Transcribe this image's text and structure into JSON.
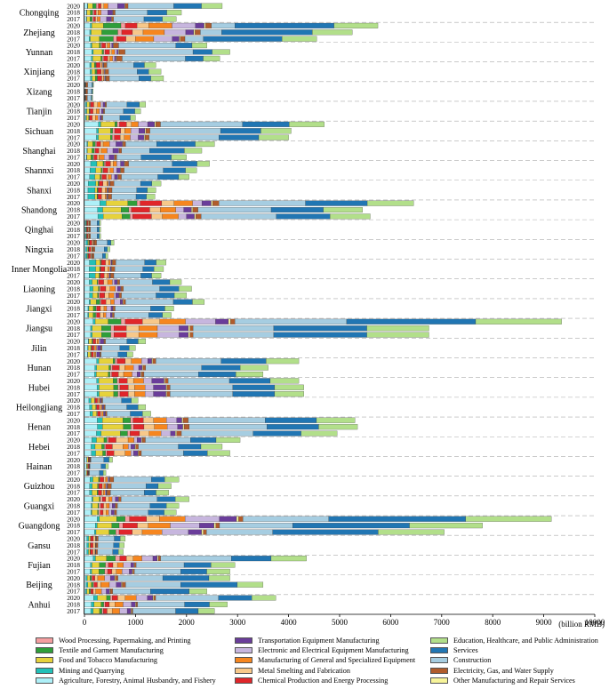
{
  "chart_data": {
    "type": "bar",
    "orientation": "horizontal",
    "stacked": true,
    "xlabel": "(billion RMB)",
    "xlim": [
      0,
      10000
    ],
    "xticks": [
      "0",
      "1000",
      "2000",
      "3000",
      "4000",
      "5000",
      "6000",
      "7000",
      "8000",
      "9000",
      "10000"
    ],
    "years": [
      "2020",
      "2018",
      "2017"
    ],
    "provinces": [
      "Chongqing",
      "Zhejiang",
      "Yunnan",
      "Xinjiang",
      "Xizang",
      "Tianjin",
      "Sichuan",
      "Shanghai",
      "Shannxi",
      "Shanxi",
      "Shandong",
      "Qinghai",
      "Ningxia",
      "Inner Mongolia",
      "Liaoning",
      "Jiangxi",
      "Jiangsu",
      "Jilin",
      "Hunan",
      "Hubei",
      "Heilongjiang",
      "Henan",
      "Hebei",
      "Hainan",
      "Guizhou",
      "Guangxi",
      "Guangdong",
      "Gansu",
      "Fujian",
      "Beijing",
      "Anhui"
    ],
    "sectors": [
      {
        "name": "Agriculture, Forestry, Animal Husbandry, and Fishery",
        "color": "#aef0f8"
      },
      {
        "name": "Mining and Quarrying",
        "color": "#22c0b8"
      },
      {
        "name": "Food and Tobacco Manufacturing",
        "color": "#e6d23c"
      },
      {
        "name": "Textile and Garment Manufacturing",
        "color": "#2f9e3a"
      },
      {
        "name": "Wood Processing, Papermaking, and Printing",
        "color": "#f59ea0"
      },
      {
        "name": "Chemical Production and Energy Processing",
        "color": "#e0262a"
      },
      {
        "name": "Metal Smelting and Fabrication",
        "color": "#f7c88a"
      },
      {
        "name": "Manufacturing of General and Specialized Equipment",
        "color": "#f6861f"
      },
      {
        "name": "Electronic and Electrical Equipment Manufacturing",
        "color": "#c7b6de"
      },
      {
        "name": "Transportation Equipment Manufacturing",
        "color": "#6a3d9a"
      },
      {
        "name": "Other Manufacturing and Repair Services",
        "color": "#f7f49a"
      },
      {
        "name": "Electricity, Gas, and Water Supply",
        "color": "#b05c2c"
      },
      {
        "name": "Construction",
        "color": "#a6cde1"
      },
      {
        "name": "Services",
        "color": "#2176b3"
      },
      {
        "name": "Education, Healthcare, and Public Administration",
        "color": "#b2df8a"
      }
    ],
    "legend_order": [
      4,
      9,
      14,
      3,
      8,
      13,
      2,
      7,
      12,
      1,
      6,
      11,
      0,
      5,
      10
    ],
    "totals": {
      "Chongqing": [
        2700,
        1900,
        1800
      ],
      "Zhejiang": [
        5750,
        5250,
        4550
      ],
      "Yunnan": [
        2400,
        2850,
        2650
      ],
      "Xinjiang": [
        1400,
        1500,
        1550
      ],
      "Xizang": [
        180,
        170,
        160
      ],
      "Tianjin": [
        1200,
        1100,
        1000
      ],
      "Sichuan": [
        4700,
        4050,
        4000
      ],
      "Shanghai": [
        2550,
        2300,
        2000
      ],
      "Shannxi": [
        2450,
        2200,
        2050
      ],
      "Shanxi": [
        1500,
        1400,
        1380
      ],
      "Shandong": [
        6450,
        5450,
        5600
      ],
      "Qinghai": [
        320,
        320,
        320
      ],
      "Ningxia": [
        580,
        500,
        460
      ],
      "Inner Mongolia": [
        1600,
        1550,
        1500
      ],
      "Liaoning": [
        1900,
        2100,
        2000
      ],
      "Jiangxi": [
        2350,
        1750,
        1700
      ],
      "Jiangsu": [
        9350,
        6750,
        6750
      ],
      "Jilin": [
        1200,
        1000,
        950
      ],
      "Hunan": [
        4200,
        3600,
        3500
      ],
      "Hubei": [
        4200,
        4300,
        4300
      ],
      "Heilongjiang": [
        1050,
        1200,
        1300
      ],
      "Henan": [
        5300,
        5350,
        4950
      ],
      "Hebei": [
        3050,
        2700,
        2850
      ],
      "Hainan": [
        550,
        470,
        420
      ],
      "Guizhou": [
        1850,
        1700,
        1650
      ],
      "Guangxi": [
        2050,
        1850,
        1800
      ],
      "Guangdong": [
        9150,
        7800,
        7050
      ],
      "Gansu": [
        800,
        780,
        760
      ],
      "Fujian": [
        4350,
        2950,
        2850
      ],
      "Beijing": [
        2850,
        3500,
        2400
      ],
      "Anhui": [
        3750,
        2800,
        2550
      ]
    },
    "shares": {
      "Chongqing": [
        0.02,
        0.005,
        0.035,
        0.025,
        0.015,
        0.02,
        0.02,
        0.03,
        0.07,
        0.05,
        0.005,
        0.02,
        0.33,
        0.2,
        0.15
      ],
      "Zhejiang": [
        0.02,
        0.005,
        0.04,
        0.06,
        0.015,
        0.04,
        0.04,
        0.08,
        0.08,
        0.03,
        0.005,
        0.02,
        0.08,
        0.34,
        0.15
      ],
      "Yunnan": [
        0.05,
        0.01,
        0.06,
        0.01,
        0.01,
        0.03,
        0.015,
        0.02,
        0.015,
        0.01,
        0.005,
        0.04,
        0.46,
        0.13,
        0.12
      ],
      "Xinjiang": [
        0.07,
        0.02,
        0.04,
        0.02,
        0.005,
        0.05,
        0.02,
        0.01,
        0.01,
        0.005,
        0.005,
        0.04,
        0.35,
        0.14,
        0.15
      ],
      "Xizang": [
        0.05,
        0.02,
        0.02,
        0.005,
        0.005,
        0.03,
        0.01,
        0.005,
        0.005,
        0.005,
        0.005,
        0.2,
        0.45,
        0.1,
        0.08
      ],
      "Tianjin": [
        0.02,
        0.02,
        0.04,
        0.01,
        0.01,
        0.05,
        0.06,
        0.05,
        0.04,
        0.03,
        0.005,
        0.02,
        0.33,
        0.2,
        0.1
      ],
      "Sichuan": [
        0.06,
        0.01,
        0.06,
        0.01,
        0.01,
        0.03,
        0.02,
        0.03,
        0.04,
        0.03,
        0.005,
        0.02,
        0.35,
        0.2,
        0.15
      ],
      "Shanghai": [
        0.02,
        0.005,
        0.04,
        0.02,
        0.01,
        0.03,
        0.02,
        0.05,
        0.05,
        0.05,
        0.005,
        0.02,
        0.24,
        0.3,
        0.15
      ],
      "Shannxi": [
        0.05,
        0.05,
        0.05,
        0.01,
        0.01,
        0.04,
        0.02,
        0.03,
        0.03,
        0.03,
        0.005,
        0.03,
        0.35,
        0.2,
        0.1
      ],
      "Shanxi": [
        0.05,
        0.1,
        0.03,
        0.01,
        0.005,
        0.05,
        0.05,
        0.02,
        0.01,
        0.01,
        0.005,
        0.05,
        0.35,
        0.15,
        0.12
      ],
      "Shandong": [
        0.05,
        0.02,
        0.07,
        0.03,
        0.01,
        0.07,
        0.04,
        0.06,
        0.03,
        0.03,
        0.005,
        0.02,
        0.28,
        0.2,
        0.15
      ],
      "Qinghai": [
        0.05,
        0.05,
        0.03,
        0.01,
        0.005,
        0.06,
        0.05,
        0.01,
        0.005,
        0.005,
        0.005,
        0.08,
        0.4,
        0.12,
        0.09
      ],
      "Ningxia": [
        0.05,
        0.06,
        0.03,
        0.02,
        0.005,
        0.08,
        0.04,
        0.02,
        0.01,
        0.005,
        0.005,
        0.07,
        0.35,
        0.12,
        0.1
      ],
      "Inner Mongolia": [
        0.06,
        0.08,
        0.05,
        0.01,
        0.005,
        0.05,
        0.04,
        0.02,
        0.01,
        0.01,
        0.005,
        0.04,
        0.35,
        0.14,
        0.12
      ],
      "Liaoning": [
        0.05,
        0.03,
        0.05,
        0.01,
        0.01,
        0.05,
        0.04,
        0.05,
        0.02,
        0.03,
        0.005,
        0.02,
        0.34,
        0.18,
        0.12
      ],
      "Jiangxi": [
        0.04,
        0.01,
        0.05,
        0.03,
        0.01,
        0.04,
        0.04,
        0.03,
        0.05,
        0.02,
        0.005,
        0.02,
        0.4,
        0.16,
        0.1
      ],
      "Jiangsu": [
        0.02,
        0.005,
        0.03,
        0.03,
        0.01,
        0.04,
        0.04,
        0.06,
        0.07,
        0.03,
        0.005,
        0.01,
        0.26,
        0.3,
        0.2
      ],
      "Jilin": [
        0.06,
        0.01,
        0.05,
        0.01,
        0.01,
        0.04,
        0.02,
        0.03,
        0.02,
        0.06,
        0.005,
        0.02,
        0.34,
        0.18,
        0.12
      ],
      "Hunan": [
        0.06,
        0.01,
        0.07,
        0.01,
        0.01,
        0.04,
        0.03,
        0.05,
        0.03,
        0.02,
        0.005,
        0.015,
        0.32,
        0.22,
        0.16
      ],
      "Hubei": [
        0.06,
        0.01,
        0.07,
        0.02,
        0.01,
        0.04,
        0.03,
        0.05,
        0.04,
        0.06,
        0.005,
        0.015,
        0.3,
        0.2,
        0.14
      ],
      "Heilongjiang": [
        0.08,
        0.04,
        0.06,
        0.005,
        0.01,
        0.04,
        0.02,
        0.02,
        0.01,
        0.02,
        0.005,
        0.02,
        0.34,
        0.18,
        0.12
      ],
      "Henan": [
        0.05,
        0.02,
        0.08,
        0.03,
        0.01,
        0.04,
        0.04,
        0.05,
        0.04,
        0.02,
        0.005,
        0.02,
        0.3,
        0.2,
        0.15
      ],
      "Hebei": [
        0.05,
        0.03,
        0.05,
        0.02,
        0.01,
        0.05,
        0.08,
        0.04,
        0.02,
        0.03,
        0.005,
        0.02,
        0.3,
        0.17,
        0.16
      ],
      "Hainan": [
        0.08,
        0.01,
        0.04,
        0.005,
        0.005,
        0.03,
        0.01,
        0.01,
        0.005,
        0.005,
        0.005,
        0.02,
        0.45,
        0.18,
        0.12
      ],
      "Guizhou": [
        0.06,
        0.03,
        0.06,
        0.01,
        0.005,
        0.04,
        0.02,
        0.02,
        0.01,
        0.01,
        0.005,
        0.04,
        0.4,
        0.14,
        0.15
      ],
      "Guangxi": [
        0.07,
        0.01,
        0.06,
        0.01,
        0.02,
        0.03,
        0.03,
        0.03,
        0.03,
        0.03,
        0.005,
        0.02,
        0.34,
        0.17,
        0.13
      ],
      "Guangdong": [
        0.03,
        0.005,
        0.04,
        0.02,
        0.01,
        0.04,
        0.03,
        0.06,
        0.08,
        0.04,
        0.005,
        0.01,
        0.2,
        0.32,
        0.2
      ],
      "Gansu": [
        0.06,
        0.04,
        0.04,
        0.005,
        0.005,
        0.06,
        0.05,
        0.01,
        0.005,
        0.005,
        0.005,
        0.04,
        0.38,
        0.14,
        0.12
      ],
      "Fujian": [
        0.04,
        0.01,
        0.05,
        0.04,
        0.02,
        0.03,
        0.03,
        0.04,
        0.05,
        0.02,
        0.005,
        0.01,
        0.32,
        0.18,
        0.16
      ],
      "Beijing": [
        0.01,
        0.01,
        0.02,
        0.01,
        0.005,
        0.02,
        0.02,
        0.05,
        0.04,
        0.03,
        0.005,
        0.02,
        0.32,
        0.33,
        0.15
      ],
      "Anhui": [
        0.05,
        0.02,
        0.05,
        0.02,
        0.01,
        0.03,
        0.04,
        0.06,
        0.06,
        0.03,
        0.005,
        0.01,
        0.34,
        0.18,
        0.13
      ]
    }
  }
}
